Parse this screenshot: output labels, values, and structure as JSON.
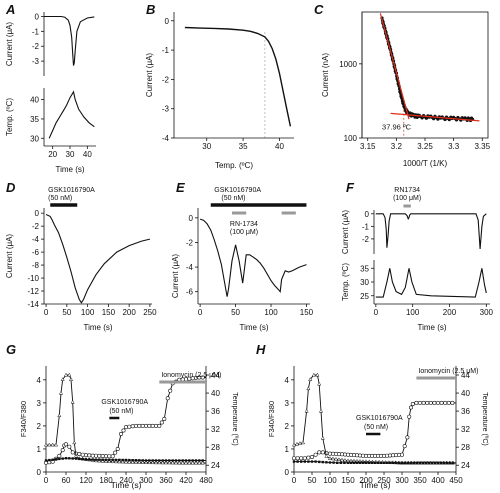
{
  "chart_data": [
    {
      "panel": "A",
      "type": "line",
      "xlabel": "Time (s)",
      "top": {
        "ylabel": "Current (μA)",
        "xlim": [
          15,
          45
        ],
        "ylim": [
          -4,
          0.3
        ],
        "yticks": [
          -3,
          -2,
          -1,
          0
        ],
        "x": [
          15,
          19,
          22,
          25,
          27,
          29,
          30,
          31,
          31.5,
          32,
          32.5,
          33,
          34,
          36,
          40,
          44
        ],
        "y": [
          0,
          0,
          0,
          0,
          -0.05,
          -0.25,
          -0.6,
          -1.4,
          -2.4,
          -3.3,
          -3.1,
          -2.3,
          -1.0,
          -0.35,
          -0.1,
          -0.03
        ]
      },
      "bottom": {
        "ylabel": "Temp. (ºC)",
        "xlim": [
          15,
          45
        ],
        "ylim": [
          28,
          43
        ],
        "yticks": [
          30,
          35,
          40
        ],
        "x": [
          18,
          20,
          22,
          24,
          26,
          28,
          30,
          32,
          33,
          35,
          38,
          41,
          44
        ],
        "y": [
          30,
          32,
          34,
          35.5,
          37,
          38.5,
          40.5,
          42,
          40,
          37.5,
          35.5,
          34,
          33
        ]
      },
      "xticks": [
        20,
        30,
        40
      ]
    },
    {
      "panel": "B",
      "type": "line",
      "xlabel": "Temp. (ºC)",
      "ylabel": "Current (μA)",
      "xlim": [
        25.5,
        42
      ],
      "ylim": [
        -4,
        0.3
      ],
      "xticks": [
        30,
        35,
        40
      ],
      "yticks": [
        -4,
        -3,
        -2,
        -1,
        0
      ],
      "x": [
        27,
        29,
        31,
        33,
        35,
        36,
        37,
        38,
        38.5,
        39,
        39.5,
        40,
        40.5,
        41,
        41.5
      ],
      "y": [
        -0.23,
        -0.25,
        -0.26,
        -0.28,
        -0.32,
        -0.36,
        -0.43,
        -0.55,
        -0.7,
        -0.95,
        -1.3,
        -1.8,
        -2.4,
        -3.0,
        -3.6
      ],
      "vline_x": 38
    },
    {
      "panel": "C",
      "type": "scatter",
      "xlabel": "1000/T (1/K)",
      "ylabel": "Current (nA)",
      "xlim": [
        3.14,
        3.36
      ],
      "ylog": true,
      "ylim": [
        100,
        5000
      ],
      "xticks": [
        3.15,
        3.2,
        3.25,
        3.3,
        3.35
      ],
      "ytick_labels": [
        "100",
        "1000"
      ],
      "x": [
        3.175,
        3.18,
        3.185,
        3.19,
        3.195,
        3.2,
        3.205,
        3.21,
        3.215,
        3.22,
        3.23,
        3.24,
        3.26,
        3.28,
        3.3,
        3.32,
        3.335
      ],
      "y": [
        4000,
        2900,
        2100,
        1500,
        1050,
        720,
        480,
        330,
        250,
        215,
        200,
        195,
        190,
        185,
        183,
        180,
        178
      ],
      "annotation": "37.96 ºC"
    },
    {
      "panel": "D",
      "type": "line",
      "xlabel": "Time (s)",
      "ylabel": "Current (μA)",
      "xlim": [
        -5,
        255
      ],
      "ylim": [
        -14,
        0.8
      ],
      "xticks": [
        0,
        50,
        100,
        150,
        200,
        250
      ],
      "yticks": [
        -14,
        -12,
        -10,
        -8,
        -6,
        -4,
        -2,
        0
      ],
      "x": [
        0,
        10,
        15,
        20,
        30,
        40,
        50,
        60,
        70,
        80,
        85,
        90,
        100,
        120,
        140,
        170,
        200,
        230,
        250
      ],
      "y": [
        -0.2,
        -0.5,
        -1.1,
        -1.8,
        -3.0,
        -4.8,
        -6.8,
        -9.0,
        -11.5,
        -13.3,
        -13.8,
        -13.3,
        -11.8,
        -9.5,
        -7.8,
        -6.0,
        -5.0,
        -4.3,
        -4.0
      ],
      "drug_label": "GSK1016790A",
      "drug_conc": "(50 nM)",
      "drug_bar": [
        10,
        75
      ]
    },
    {
      "panel": "E",
      "type": "line",
      "xlabel": "Time (s)",
      "ylabel": "Current (μA)",
      "xlim": [
        -3,
        155
      ],
      "ylim": [
        -7,
        0.8
      ],
      "xticks": [
        0,
        50,
        100,
        150
      ],
      "yticks": [
        -6,
        -4,
        -2,
        0
      ],
      "x": [
        0,
        5,
        10,
        15,
        20,
        25,
        30,
        35,
        38,
        40,
        45,
        50,
        55,
        60,
        65,
        70,
        75,
        80,
        85,
        90,
        95,
        100,
        105,
        110,
        113,
        115,
        120,
        125,
        130,
        140,
        150
      ],
      "y": [
        -0.1,
        -0.2,
        -0.5,
        -1.0,
        -1.8,
        -2.7,
        -3.8,
        -5.4,
        -6.4,
        -5.8,
        -3.5,
        -2.2,
        -3.5,
        -5.3,
        -3.0,
        -3.0,
        -3.2,
        -3.4,
        -3.7,
        -4.1,
        -4.6,
        -5.1,
        -5.5,
        -5.8,
        -6.0,
        -5.0,
        -4.3,
        -4.4,
        -4.3,
        -4.0,
        -3.8
      ],
      "drug1_label": "GSK1016790A",
      "drug1_conc": "(50 nM)",
      "drug1_bar": [
        15,
        150
      ],
      "drug2_label": "RN-1734",
      "drug2_conc": "(100 μM)",
      "drug2_bars": [
        [
          45,
          65
        ],
        [
          115,
          135
        ]
      ]
    },
    {
      "panel": "F",
      "type": "line",
      "xlabel": "Time (s)",
      "xlim": [
        -5,
        310
      ],
      "xticks": [
        0,
        100,
        200,
        300
      ],
      "top": {
        "ylabel": "Current (μA)",
        "ylim": [
          -3.2,
          0.3
        ],
        "yticks": [
          -2,
          -1,
          0
        ],
        "x": [
          0,
          20,
          25,
          28,
          30,
          33,
          36,
          40,
          60,
          80,
          85,
          88,
          90,
          92,
          95,
          100,
          200,
          272,
          278,
          283,
          288,
          292,
          300
        ],
        "y": [
          0,
          0,
          -0.3,
          -1.2,
          -2.7,
          -1.8,
          -0.6,
          0,
          0,
          0,
          -0.15,
          -0.4,
          -0.3,
          -0.1,
          0,
          0,
          0,
          0,
          -0.5,
          -2.8,
          -1.0,
          -0.2,
          0
        ]
      },
      "bottom": {
        "ylabel": "Temp. (ºC)",
        "ylim": [
          22,
          38
        ],
        "yticks": [
          25,
          30,
          35
        ],
        "x": [
          0,
          20,
          30,
          38,
          45,
          55,
          70,
          80,
          90,
          98,
          110,
          150,
          270,
          280,
          288,
          295,
          300
        ],
        "y": [
          24.5,
          24.5,
          30,
          35,
          30,
          26.5,
          25.5,
          28,
          35,
          30,
          25.5,
          25,
          24.5,
          30,
          35,
          29,
          26
        ]
      },
      "drug_label": "RN1734",
      "drug_conc": "(100 μM)",
      "drug_bar": [
        75,
        95
      ]
    },
    {
      "panel": "G",
      "type": "line",
      "xlabel": "Time (s)",
      "ylabel": "F340/F380",
      "ylabel_right": "Temperature (ºC)",
      "xlim": [
        0,
        480
      ],
      "ylim": [
        0,
        4.6
      ],
      "ylim_right": [
        22.5,
        46
      ],
      "xticks": [
        0,
        60,
        120,
        180,
        240,
        300,
        360,
        420,
        480
      ],
      "yticks": [
        0,
        1,
        2,
        3,
        4
      ],
      "yticks_right": [
        24,
        28,
        32,
        36,
        40,
        44
      ],
      "series": [
        {
          "marker": "circle",
          "x": [
            0,
            20,
            40,
            50,
            55,
            60,
            70,
            80,
            90,
            100,
            110,
            130,
            160,
            200,
            215,
            225,
            240,
            270,
            300,
            320,
            340,
            355,
            365,
            380,
            400,
            430,
            460,
            480
          ],
          "y": [
            0.4,
            0.45,
            0.7,
            0.95,
            1.15,
            1.2,
            1.1,
            0.85,
            0.8,
            0.78,
            0.75,
            0.72,
            0.7,
            0.68,
            1.0,
            1.65,
            1.95,
            2.0,
            2.0,
            2.0,
            2.0,
            2.3,
            3.2,
            3.85,
            4.0,
            4.05,
            4.1,
            4.1
          ]
        },
        {
          "marker": "triangle",
          "axis": "right",
          "x": [
            0,
            30,
            40,
            45,
            50,
            60,
            70,
            75,
            80,
            85,
            90,
            100,
            150,
            200,
            300,
            400,
            480
          ],
          "y": [
            28.5,
            28.5,
            35,
            40,
            43,
            44,
            44,
            43,
            38,
            29,
            26,
            25.5,
            25,
            24.8,
            24.6,
            24.5,
            24.5
          ]
        },
        {
          "marker": "diamond",
          "x": [
            0,
            30,
            60,
            90,
            120,
            180,
            240,
            300,
            360,
            420,
            480
          ],
          "y": [
            0.5,
            0.55,
            0.6,
            0.58,
            0.55,
            0.53,
            0.52,
            0.5,
            0.5,
            0.5,
            0.5
          ]
        }
      ],
      "drug1_label": "GSK1016790A",
      "drug1_conc": "(50 nM)",
      "drug1_bar": [
        190,
        220
      ],
      "drug2_label": "Ionomycin (2.5 μM)",
      "drug2_bar": [
        340,
        480
      ]
    },
    {
      "panel": "H",
      "type": "line",
      "xlabel": "Time (s)",
      "ylabel": "F340/F380",
      "ylabel_right": "Temperature (ºC)",
      "xlim": [
        0,
        450
      ],
      "ylim": [
        0,
        4.6
      ],
      "ylim_right": [
        22.5,
        46
      ],
      "xticks": [
        0,
        50,
        100,
        150,
        200,
        250,
        300,
        350,
        400,
        450
      ],
      "yticks": [
        0,
        1,
        2,
        3,
        4
      ],
      "yticks_right": [
        24,
        28,
        32,
        36,
        40,
        44
      ],
      "series": [
        {
          "marker": "circle",
          "x": [
            0,
            30,
            50,
            60,
            70,
            80,
            90,
            100,
            150,
            200,
            250,
            300,
            315,
            320,
            325,
            330,
            340,
            360,
            380,
            400,
            420,
            440,
            450
          ],
          "y": [
            0.6,
            0.6,
            0.65,
            0.75,
            0.85,
            0.85,
            0.82,
            0.8,
            0.75,
            0.7,
            0.7,
            0.75,
            1.5,
            2.4,
            2.8,
            2.95,
            3.0,
            3.0,
            3.0,
            3.0,
            3.0,
            3.0,
            3.0
          ]
        },
        {
          "marker": "triangle",
          "axis": "right",
          "x": [
            0,
            25,
            35,
            40,
            45,
            55,
            65,
            70,
            75,
            80,
            90,
            100,
            150,
            200,
            300,
            450
          ],
          "y": [
            28.5,
            29,
            36,
            41,
            43,
            44,
            44,
            42,
            36,
            30,
            26,
            25.5,
            25,
            24.8,
            24.5,
            24.5
          ]
        },
        {
          "marker": "diamond",
          "x": [
            0,
            30,
            60,
            90,
            120,
            150,
            200,
            250,
            300,
            350,
            400,
            450
          ],
          "y": [
            0.45,
            0.45,
            0.45,
            0.42,
            0.4,
            0.4,
            0.4,
            0.4,
            0.4,
            0.4,
            0.4,
            0.4
          ]
        }
      ],
      "drug1_label": "GSK1016790A",
      "drug1_conc": "(50 nM)",
      "drug1_bar": [
        200,
        240
      ],
      "drug2_label": "Ionomycin (2.5 μM)",
      "drug2_bar": [
        340,
        450
      ]
    }
  ]
}
